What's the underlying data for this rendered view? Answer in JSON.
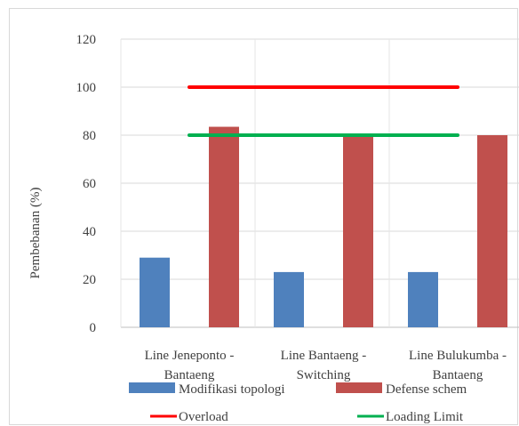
{
  "chart_data": {
    "type": "bar",
    "title": "",
    "xlabel": "",
    "ylabel": "Pembebanan (%)",
    "ylim": [
      0,
      120
    ],
    "yticks": [
      0,
      20,
      40,
      60,
      80,
      100,
      120
    ],
    "grid": true,
    "legend_position": "bottom",
    "categories": [
      [
        "Line Jeneponto -",
        "Bantaeng"
      ],
      [
        "Line Bantaeng -",
        "Switching"
      ],
      [
        "Line Bulukumba -",
        "Bantaeng"
      ]
    ],
    "series": [
      {
        "name": "Modifikasi topologi",
        "type": "bar",
        "color": "#4f81bd",
        "values": [
          29,
          23,
          23
        ]
      },
      {
        "name": "Defense schem",
        "type": "bar",
        "color": "#c0504d",
        "values": [
          83.5,
          80,
          80
        ]
      },
      {
        "name": "Overload",
        "type": "line",
        "color": "#ff0000",
        "values": [
          100,
          100,
          100
        ]
      },
      {
        "name": "Loading Limit",
        "type": "line",
        "color": "#00b050",
        "values": [
          80,
          80,
          80
        ]
      }
    ]
  }
}
